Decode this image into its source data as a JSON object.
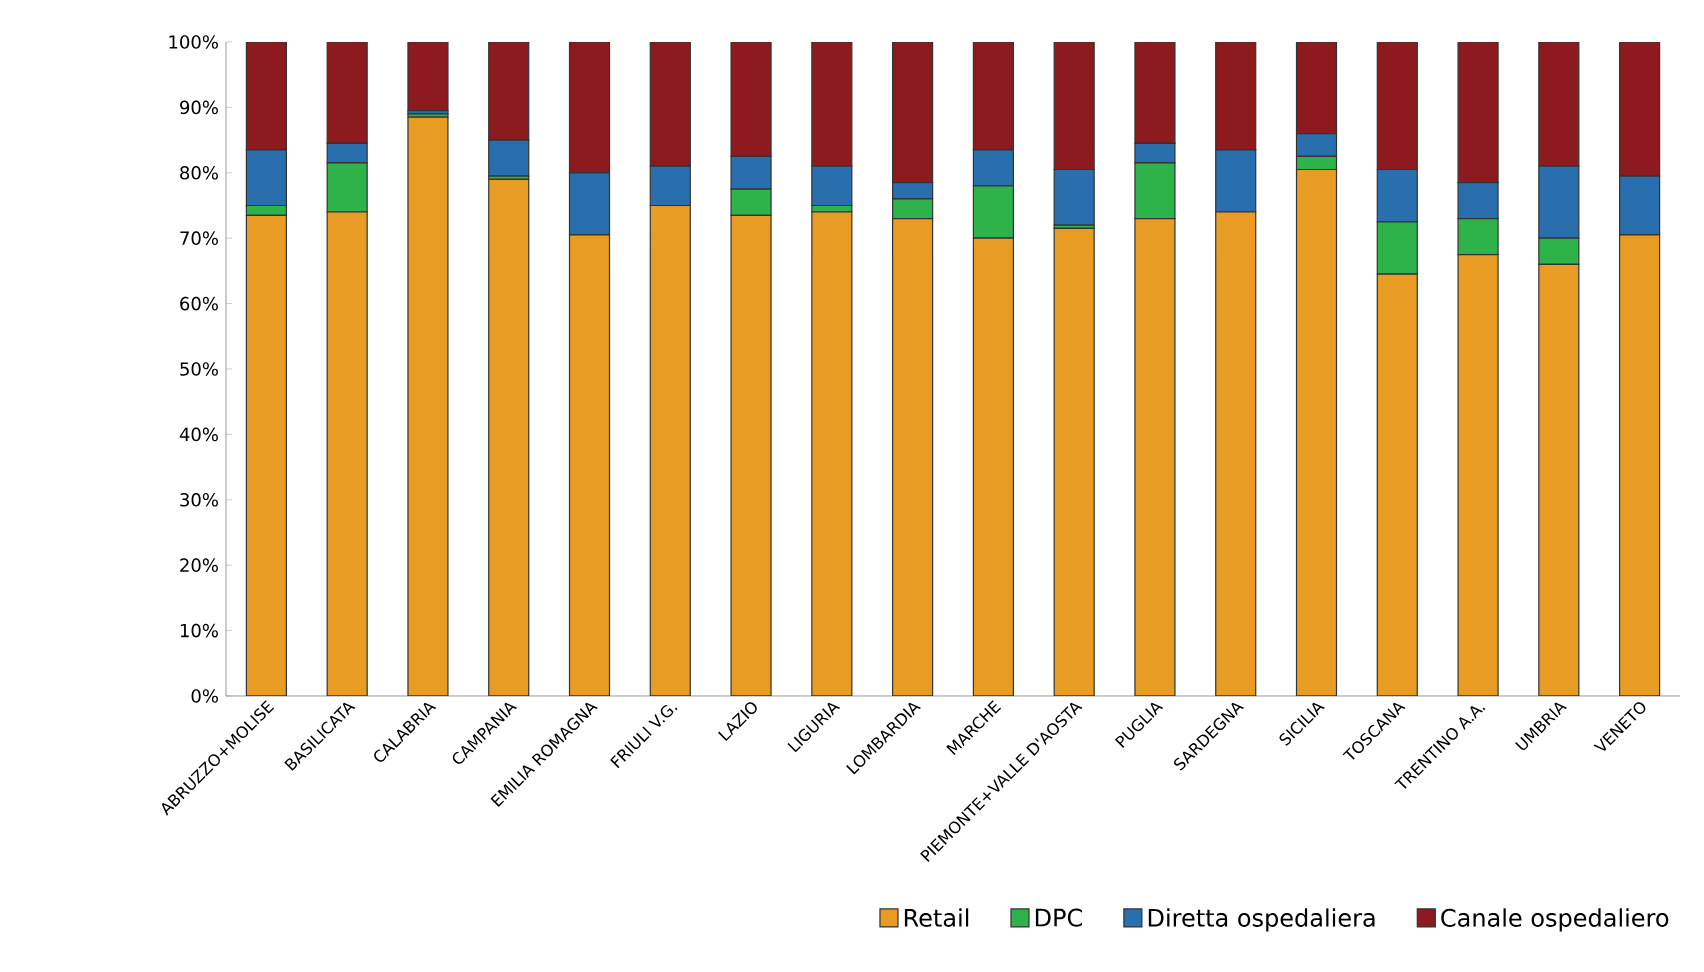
{
  "chart_data": {
    "type": "bar",
    "stacked": true,
    "categories": [
      "ABRUZZO+MOLISE",
      "BASILICATA",
      "CALABRIA",
      "CAMPANIA",
      "EMILIA ROMAGNA",
      "FRIULI V.G.",
      "LAZIO",
      "LIGURIA",
      "LOMBARDIA",
      "MARCHE",
      "PIEMONTE+VALLE D'AOSTA",
      "PUGLIA",
      "SARDEGNA",
      "SICILIA",
      "TOSCANA",
      "TRENTINO A.A.",
      "UMBRIA",
      "VENETO"
    ],
    "series": [
      {
        "name": "Retail",
        "color": "#e89c24",
        "values": [
          73.5,
          74,
          88.5,
          79,
          70.5,
          75,
          73.5,
          74,
          73,
          70,
          71.5,
          73,
          74,
          80.5,
          64.5,
          67.5,
          66,
          70.5
        ]
      },
      {
        "name": "DPC",
        "color": "#2db34a",
        "values": [
          1.5,
          7.5,
          0.5,
          0.5,
          0,
          0,
          4,
          1,
          3,
          8,
          0.5,
          8.5,
          0,
          2,
          8,
          5.5,
          4,
          0
        ]
      },
      {
        "name": "Diretta ospedaliera",
        "color": "#2a6fad",
        "values": [
          8.5,
          3,
          0.5,
          5.5,
          9.5,
          6,
          5,
          6,
          2.5,
          5.5,
          8.5,
          3,
          9.5,
          3.5,
          8,
          5.5,
          11,
          9
        ]
      },
      {
        "name": "Canale ospedaliero",
        "color": "#8c1a1f",
        "values": [
          16.5,
          15.5,
          10.5,
          15,
          20,
          19,
          17.5,
          19,
          21.5,
          16.5,
          19.5,
          15.5,
          16.5,
          14,
          19.5,
          21.5,
          19,
          20.5
        ]
      }
    ],
    "ylim": [
      0,
      100
    ],
    "yticks": [
      {
        "value": 0,
        "label": "0%"
      },
      {
        "value": 10,
        "label": "10%"
      },
      {
        "value": 20,
        "label": "20%"
      },
      {
        "value": 30,
        "label": "30%"
      },
      {
        "value": 40,
        "label": "40%"
      },
      {
        "value": 50,
        "label": "50%"
      },
      {
        "value": 60,
        "label": "60%"
      },
      {
        "value": 70,
        "label": "70%"
      },
      {
        "value": 80,
        "label": "80%"
      },
      {
        "value": 90,
        "label": "90%"
      },
      {
        "value": 100,
        "label": "100%"
      }
    ],
    "grid": false,
    "legend": "bottom right"
  }
}
